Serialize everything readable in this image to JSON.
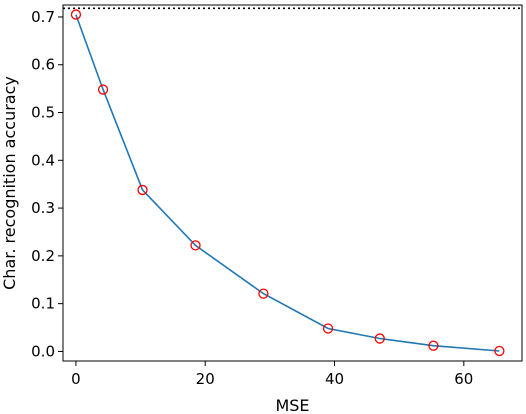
{
  "chart_data": {
    "type": "line",
    "xlabel": "MSE",
    "ylabel": "Char. recognition accuracy",
    "xlim": [
      -2,
      69
    ],
    "ylim": [
      -0.02,
      0.725
    ],
    "x_ticks": [
      0,
      20,
      40,
      60
    ],
    "x_tick_labels": [
      "0",
      "20",
      "40",
      "60"
    ],
    "y_ticks": [
      0.0,
      0.1,
      0.2,
      0.3,
      0.4,
      0.5,
      0.6,
      0.7
    ],
    "y_tick_labels": [
      "0.0",
      "0.1",
      "0.2",
      "0.3",
      "0.4",
      "0.5",
      "0.6",
      "0.7"
    ],
    "grid": false,
    "reference_line": {
      "y": 0.718,
      "style": "dotted",
      "color": "#000000"
    },
    "series": [
      {
        "x": [
          0,
          4.2,
          10.3,
          18.5,
          29.0,
          39.0,
          47.0,
          55.3,
          65.5
        ],
        "y": [
          0.705,
          0.548,
          0.338,
          0.222,
          0.121,
          0.048,
          0.027,
          0.012,
          0.001
        ],
        "line_color": "#1f77b4",
        "marker": "circle-open",
        "marker_color": "#ff0000"
      }
    ]
  }
}
